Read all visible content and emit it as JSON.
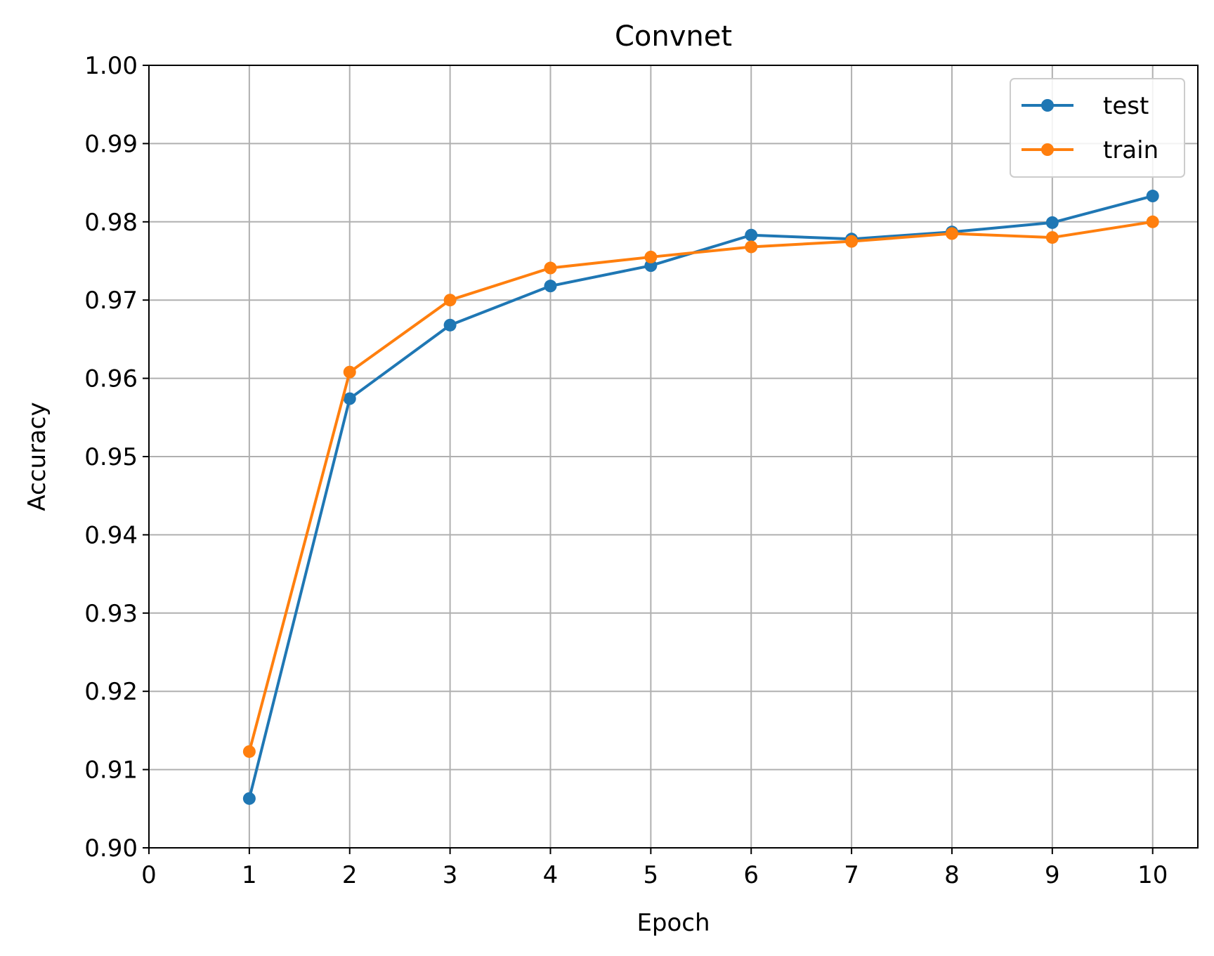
{
  "chart_data": {
    "type": "line",
    "title": "Convnet",
    "xlabel": "Epoch",
    "ylabel": "Accuracy",
    "xlim": [
      0,
      10.45
    ],
    "ylim": [
      0.9,
      1.0
    ],
    "xticks": [
      0,
      1,
      2,
      3,
      4,
      5,
      6,
      7,
      8,
      9,
      10
    ],
    "xtick_labels": [
      "0",
      "1",
      "2",
      "3",
      "4",
      "5",
      "6",
      "7",
      "8",
      "9",
      "10"
    ],
    "yticks": [
      0.9,
      0.91,
      0.92,
      0.93,
      0.94,
      0.95,
      0.96,
      0.97,
      0.98,
      0.99,
      1.0
    ],
    "ytick_labels": [
      "0.90",
      "0.91",
      "0.92",
      "0.93",
      "0.94",
      "0.95",
      "0.96",
      "0.97",
      "0.98",
      "0.99",
      "1.00"
    ],
    "grid": true,
    "legend_position": "top-right",
    "x": [
      1,
      2,
      3,
      4,
      5,
      6,
      7,
      8,
      9,
      10
    ],
    "series": [
      {
        "name": "test",
        "color": "#1f77b4",
        "values": [
          0.9063,
          0.9574,
          0.9668,
          0.9718,
          0.9744,
          0.9783,
          0.9778,
          0.9787,
          0.9799,
          0.9833
        ]
      },
      {
        "name": "train",
        "color": "#ff7f0e",
        "values": [
          0.9123,
          0.9608,
          0.97,
          0.9741,
          0.9755,
          0.9768,
          0.9775,
          0.9785,
          0.978,
          0.98
        ]
      }
    ]
  }
}
